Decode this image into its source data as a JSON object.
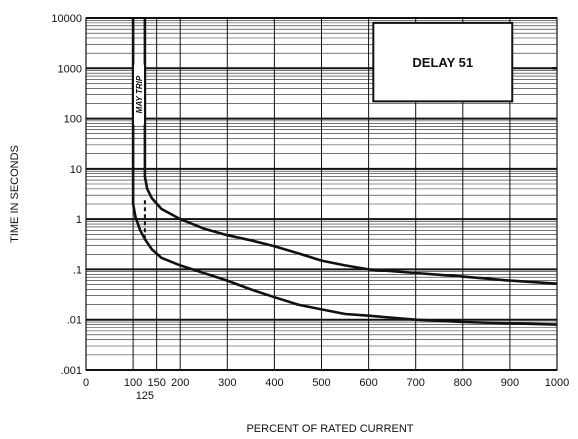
{
  "chart_data": {
    "type": "line",
    "title": "",
    "xlabel": "PERCENT OF RATED CURRENT",
    "ylabel": "TIME IN SECONDS",
    "x_scale": "linear",
    "y_scale": "log",
    "xlim": [
      0,
      1000
    ],
    "ylim": [
      0.001,
      10000
    ],
    "x_ticks": [
      {
        "value": 0,
        "label": "0"
      },
      {
        "value": 100,
        "label": "100"
      },
      {
        "value": 150,
        "label": "150"
      },
      {
        "value": 200,
        "label": "200"
      },
      {
        "value": 300,
        "label": "300"
      },
      {
        "value": 400,
        "label": "400"
      },
      {
        "value": 500,
        "label": "500"
      },
      {
        "value": 600,
        "label": "600"
      },
      {
        "value": 700,
        "label": "700"
      },
      {
        "value": 800,
        "label": "800"
      },
      {
        "value": 900,
        "label": "900"
      },
      {
        "value": 1000,
        "label": "1000"
      }
    ],
    "x_extra_tick": {
      "value": 125,
      "label": "125"
    },
    "y_ticks": [
      {
        "value": 10000,
        "label": "10000"
      },
      {
        "value": 1000,
        "label": "1000"
      },
      {
        "value": 100,
        "label": "100"
      },
      {
        "value": 10,
        "label": "10"
      },
      {
        "value": 1,
        "label": "1"
      },
      {
        "value": 0.1,
        "label": ".1"
      },
      {
        "value": 0.01,
        "label": ".01"
      },
      {
        "value": 0.001,
        "label": ".001"
      }
    ],
    "grid": true,
    "annotations": {
      "box_label": "DELAY 51",
      "band_label": "MAY TRIP"
    },
    "series": [
      {
        "x": [
          100,
          100,
          105,
          115,
          125,
          140,
          160,
          200,
          250,
          300,
          350,
          400,
          450,
          500,
          550,
          600,
          700,
          800,
          900,
          1000
        ],
        "y": [
          10000,
          2.0,
          1.1,
          0.6,
          0.4,
          0.25,
          0.17,
          0.12,
          0.085,
          0.06,
          0.04,
          0.028,
          0.02,
          0.016,
          0.013,
          0.012,
          0.01,
          0.009,
          0.0085,
          0.008
        ]
      },
      {
        "x": [
          125,
          125,
          130,
          140,
          160,
          200,
          250,
          300,
          350,
          400,
          450,
          500,
          550,
          600,
          700,
          800,
          900,
          1000
        ],
        "y": [
          10000,
          7,
          4,
          2.6,
          1.6,
          1.0,
          0.65,
          0.48,
          0.38,
          0.29,
          0.21,
          0.15,
          0.12,
          0.1,
          0.085,
          0.072,
          0.06,
          0.052
        ]
      },
      {
        "x": [
          990,
          1000
        ],
        "y": [
          1000,
          1000
        ]
      },
      {
        "x": [
          125,
          125
        ],
        "y": [
          0.4,
          2.6
        ],
        "dashed": true
      }
    ]
  }
}
